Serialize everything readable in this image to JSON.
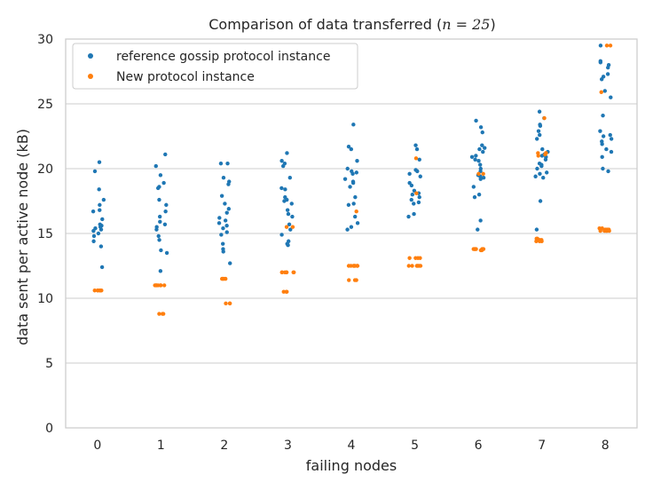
{
  "chart_data": {
    "type": "scatter",
    "title": "Comparison of data transferred (n = 25)",
    "title_parts": {
      "prefix": "Comparison of data transferred (",
      "math": "n = 25",
      "suffix": ")"
    },
    "xlabel": "failing nodes",
    "ylabel": "data sent per active node (kB)",
    "ylim": [
      0,
      30
    ],
    "y_ticks": [
      0,
      5,
      10,
      15,
      20,
      25,
      30
    ],
    "categories": [
      "0",
      "1",
      "2",
      "3",
      "4",
      "5",
      "6",
      "7",
      "8"
    ],
    "grid": "horizontal",
    "legend_position": "top-left",
    "series": [
      {
        "name": "reference gossip protocol instance",
        "color": "#1f77b4",
        "values": [
          [
            20.5,
            19.8,
            18.4,
            17.6,
            17.2,
            16.8,
            16.7,
            16.1,
            15.7,
            15.6,
            15.5,
            15.4,
            15.3,
            15.2,
            15.0,
            14.8,
            14.4,
            14.0,
            12.4
          ],
          [
            21.1,
            20.2,
            19.5,
            18.9,
            18.6,
            18.5,
            17.6,
            17.2,
            16.7,
            16.3,
            15.9,
            15.7,
            15.5,
            15.3,
            14.8,
            14.5,
            13.7,
            13.5,
            12.1
          ],
          [
            20.4,
            20.4,
            19.3,
            19.0,
            18.8,
            17.9,
            17.3,
            16.9,
            16.6,
            16.2,
            16.0,
            15.8,
            15.6,
            15.4,
            15.1,
            14.9,
            14.2,
            13.8,
            13.6,
            12.7
          ],
          [
            21.2,
            20.6,
            20.4,
            20.2,
            19.3,
            18.5,
            18.4,
            17.8,
            17.6,
            17.5,
            17.3,
            16.8,
            16.5,
            16.3,
            15.7,
            15.3,
            14.9,
            14.4,
            14.2,
            14.1
          ],
          [
            23.4,
            21.7,
            21.5,
            20.6,
            20.0,
            19.8,
            19.7,
            19.6,
            19.2,
            19.0,
            18.9,
            18.6,
            17.8,
            17.3,
            17.2,
            16.3,
            15.8,
            15.5,
            15.3
          ],
          [
            21.8,
            21.5,
            20.7,
            19.9,
            19.8,
            19.6,
            19.4,
            18.9,
            18.7,
            18.3,
            18.1,
            18.0,
            17.8,
            17.6,
            17.4,
            17.3,
            16.5,
            16.3
          ],
          [
            23.7,
            23.2,
            22.8,
            21.8,
            21.6,
            21.5,
            21.3,
            21.0,
            20.9,
            20.7,
            20.6,
            20.3,
            20.0,
            19.8,
            19.5,
            19.4,
            19.3,
            19.2,
            18.6,
            18.0,
            17.8,
            16.0,
            15.3
          ],
          [
            24.4,
            23.9,
            23.4,
            23.3,
            22.9,
            22.6,
            22.3,
            21.5,
            21.3,
            21.1,
            21.0,
            20.9,
            20.7,
            20.4,
            20.3,
            20.2,
            20.0,
            19.7,
            19.6,
            19.4,
            19.3,
            17.5,
            15.3
          ],
          [
            29.5,
            28.3,
            28.2,
            28.0,
            27.8,
            27.3,
            27.1,
            26.9,
            26.0,
            25.5,
            24.1,
            22.9,
            22.6,
            22.5,
            22.3,
            22.1,
            21.9,
            21.5,
            21.3,
            20.9,
            19.8,
            20.0
          ]
        ]
      },
      {
        "name": "New protocol instance",
        "color": "#ff7f0e",
        "values": [
          [
            10.6,
            10.6,
            10.6,
            10.6,
            10.6,
            10.6,
            10.6
          ],
          [
            11.0,
            11.0,
            11.0,
            11.0,
            11.0,
            11.0,
            11.0,
            8.8,
            8.8,
            8.8
          ],
          [
            11.5,
            11.5,
            11.5,
            11.5,
            11.5,
            11.5,
            9.6,
            9.6,
            9.6
          ],
          [
            15.5,
            15.5,
            12.0,
            12.0,
            12.0,
            12.0,
            12.0,
            12.0,
            12.0,
            10.5,
            10.5,
            10.5
          ],
          [
            16.7,
            12.5,
            12.5,
            12.5,
            12.5,
            12.5,
            12.5,
            12.5,
            11.4,
            11.4,
            11.4
          ],
          [
            20.8,
            18.1,
            13.1,
            13.1,
            13.1,
            13.1,
            12.5,
            12.5,
            12.5,
            12.5,
            12.5,
            12.5
          ],
          [
            19.6,
            19.6,
            13.8,
            13.8,
            13.8,
            13.8,
            13.8,
            13.8,
            13.8,
            13.8,
            13.7,
            13.7
          ],
          [
            23.9,
            21.2,
            21.2,
            21.2,
            21.1,
            21.0,
            14.6,
            14.6,
            14.5,
            14.5,
            14.5,
            14.4,
            14.4,
            14.4
          ],
          [
            29.5,
            29.5,
            25.9,
            15.4,
            15.4,
            15.3,
            15.3,
            15.3,
            15.2,
            15.2,
            15.2,
            15.2,
            15.2
          ]
        ]
      }
    ]
  }
}
